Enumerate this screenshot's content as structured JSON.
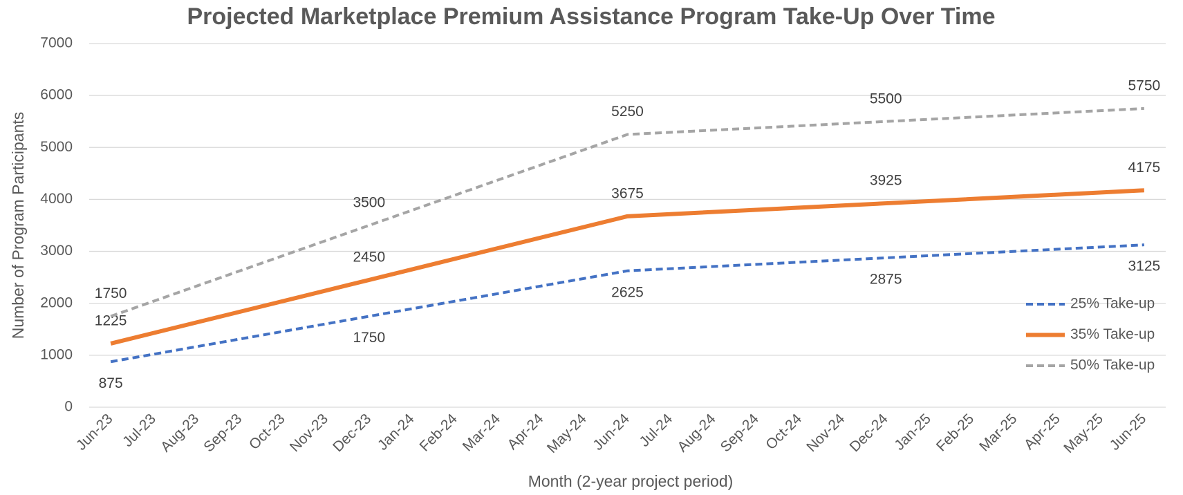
{
  "chart_data": {
    "type": "line",
    "title": "Projected Marketplace Premium Assistance Program Take-Up Over Time",
    "x_label": "Month (2-year project period)",
    "y_label": "Number of Program Participants",
    "categories": [
      "Jun-23",
      "Jul-23",
      "Aug-23",
      "Sep-23",
      "Oct-23",
      "Nov-23",
      "Dec-23",
      "Jan-24",
      "Feb-24",
      "Mar-24",
      "Apr-24",
      "May-24",
      "Jun-24",
      "Jul-24",
      "Aug-24",
      "Sep-24",
      "Oct-24",
      "Nov-24",
      "Dec-24",
      "Jan-25",
      "Feb-25",
      "Mar-25",
      "Apr-25",
      "May-25",
      "Jun-25"
    ],
    "x": [
      "Jun-23",
      "Dec-23",
      "Jun-24",
      "Dec-24",
      "Jun-25"
    ],
    "series": [
      {
        "name": "25% Take-up",
        "color": "#4472c4",
        "dash": true,
        "width": 4,
        "label_position": "below",
        "values": [
          875,
          1750,
          2625,
          2875,
          3125
        ]
      },
      {
        "name": "35% Take-up",
        "color": "#ed7d31",
        "dash": false,
        "width": 6,
        "label_position": "above",
        "values": [
          1225,
          2450,
          3675,
          3925,
          4175
        ]
      },
      {
        "name": "50% Take-up",
        "color": "#a5a5a5",
        "dash": true,
        "width": 4,
        "label_position": "above",
        "values": [
          1750,
          3500,
          5250,
          5500,
          5750
        ]
      }
    ],
    "ylim": [
      0,
      7000
    ],
    "yticks": [
      0,
      1000,
      2000,
      3000,
      4000,
      5000,
      6000,
      7000
    ],
    "grid": true,
    "legend": "right"
  }
}
